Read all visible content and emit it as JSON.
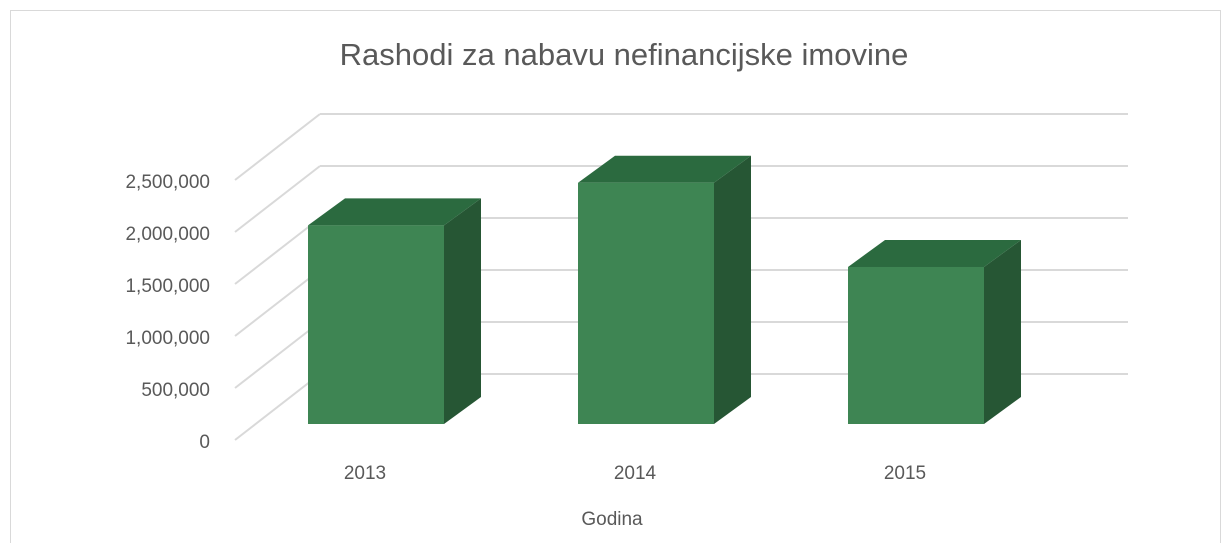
{
  "chart_data": {
    "type": "bar3d",
    "title": "Rashodi za nabavu nefinancijske imovine",
    "x_label": "Godina",
    "categories": [
      "2013",
      "2014",
      "2015"
    ],
    "values": [
      1910000,
      2320000,
      1510000
    ],
    "color": "#3e8553",
    "ylim": [
      0,
      2500000
    ],
    "yticks": [
      0,
      {
        "value": 500000,
        "label": "500,000"
      },
      {
        "value": 1000000,
        "label": "1,000,000"
      },
      {
        "value": 1500000,
        "label": "1,500,000"
      },
      {
        "value": 2000000,
        "label": "2,000,000"
      },
      {
        "value": 2500000,
        "label": "2,500,000"
      }
    ],
    "grid": true
  }
}
